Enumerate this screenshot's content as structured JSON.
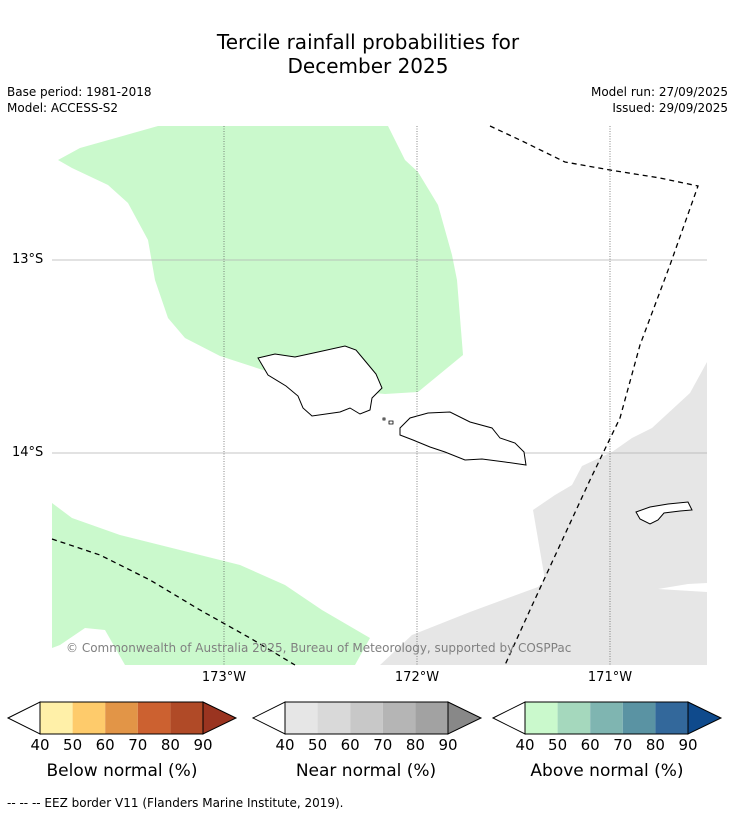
{
  "title_line1": "Tercile rainfall probabilities for",
  "title_line2": "December 2025",
  "base_period": "Base period: 1981-2018",
  "model": "Model: ACCESS-S2",
  "model_run": "Model run: 27/09/2025",
  "issued": "Issued: 29/09/2025",
  "map": {
    "lat_labels": [
      "13°S",
      "14°S"
    ],
    "lon_labels": [
      "173°W",
      "172°W",
      "171°W"
    ],
    "copyright": "© Commonwealth of Australia 2025, Bureau of Meteorology, supported by COSPPac"
  },
  "legend": {
    "below": {
      "label": "Below normal (%)",
      "ticks": [
        "40",
        "50",
        "60",
        "70",
        "80",
        "90"
      ],
      "colors": [
        "#fff0a8",
        "#fecb6b",
        "#e29547",
        "#cc6130",
        "#b04a27",
        "#9a3420"
      ]
    },
    "near": {
      "label": "Near normal (%)",
      "ticks": [
        "40",
        "50",
        "60",
        "70",
        "80",
        "90"
      ],
      "colors": [
        "#e6e6e6",
        "#d9d9d9",
        "#c8c8c8",
        "#b5b5b5",
        "#a2a2a2",
        "#888888"
      ]
    },
    "above": {
      "label": "Above normal (%)",
      "ticks": [
        "40",
        "50",
        "60",
        "70",
        "80",
        "90"
      ],
      "colors": [
        "#caf9cc",
        "#a5d8bd",
        "#7fb5b1",
        "#5a93a3",
        "#33689b",
        "#0f4a8c"
      ]
    }
  },
  "footnote": "--  --  -- EEZ border V11 (Flanders Marine Institute, 2019)."
}
